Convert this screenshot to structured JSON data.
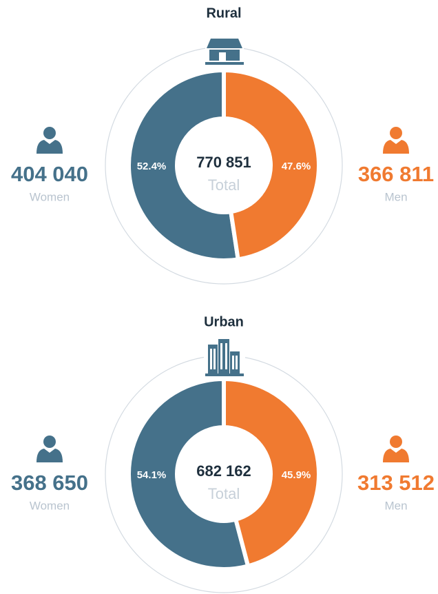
{
  "chart_data": [
    {
      "type": "donut",
      "title": "Rural",
      "categories": [
        "Women",
        "Men"
      ],
      "values": [
        52.4,
        47.6
      ],
      "value_labels": [
        "52.4%",
        "47.6%"
      ],
      "colors": [
        "#45718a",
        "#f07a30"
      ],
      "counts": [
        "404 040",
        "366 811"
      ],
      "total": "770 851",
      "total_label": "Total"
    },
    {
      "type": "donut",
      "title": "Urban",
      "categories": [
        "Women",
        "Men"
      ],
      "values": [
        54.1,
        45.9
      ],
      "value_labels": [
        "54.1%",
        "45.9%"
      ],
      "colors": [
        "#45718a",
        "#f07a30"
      ],
      "counts": [
        "368 650",
        "313 512"
      ],
      "total": "682 162",
      "total_label": "Total"
    }
  ]
}
